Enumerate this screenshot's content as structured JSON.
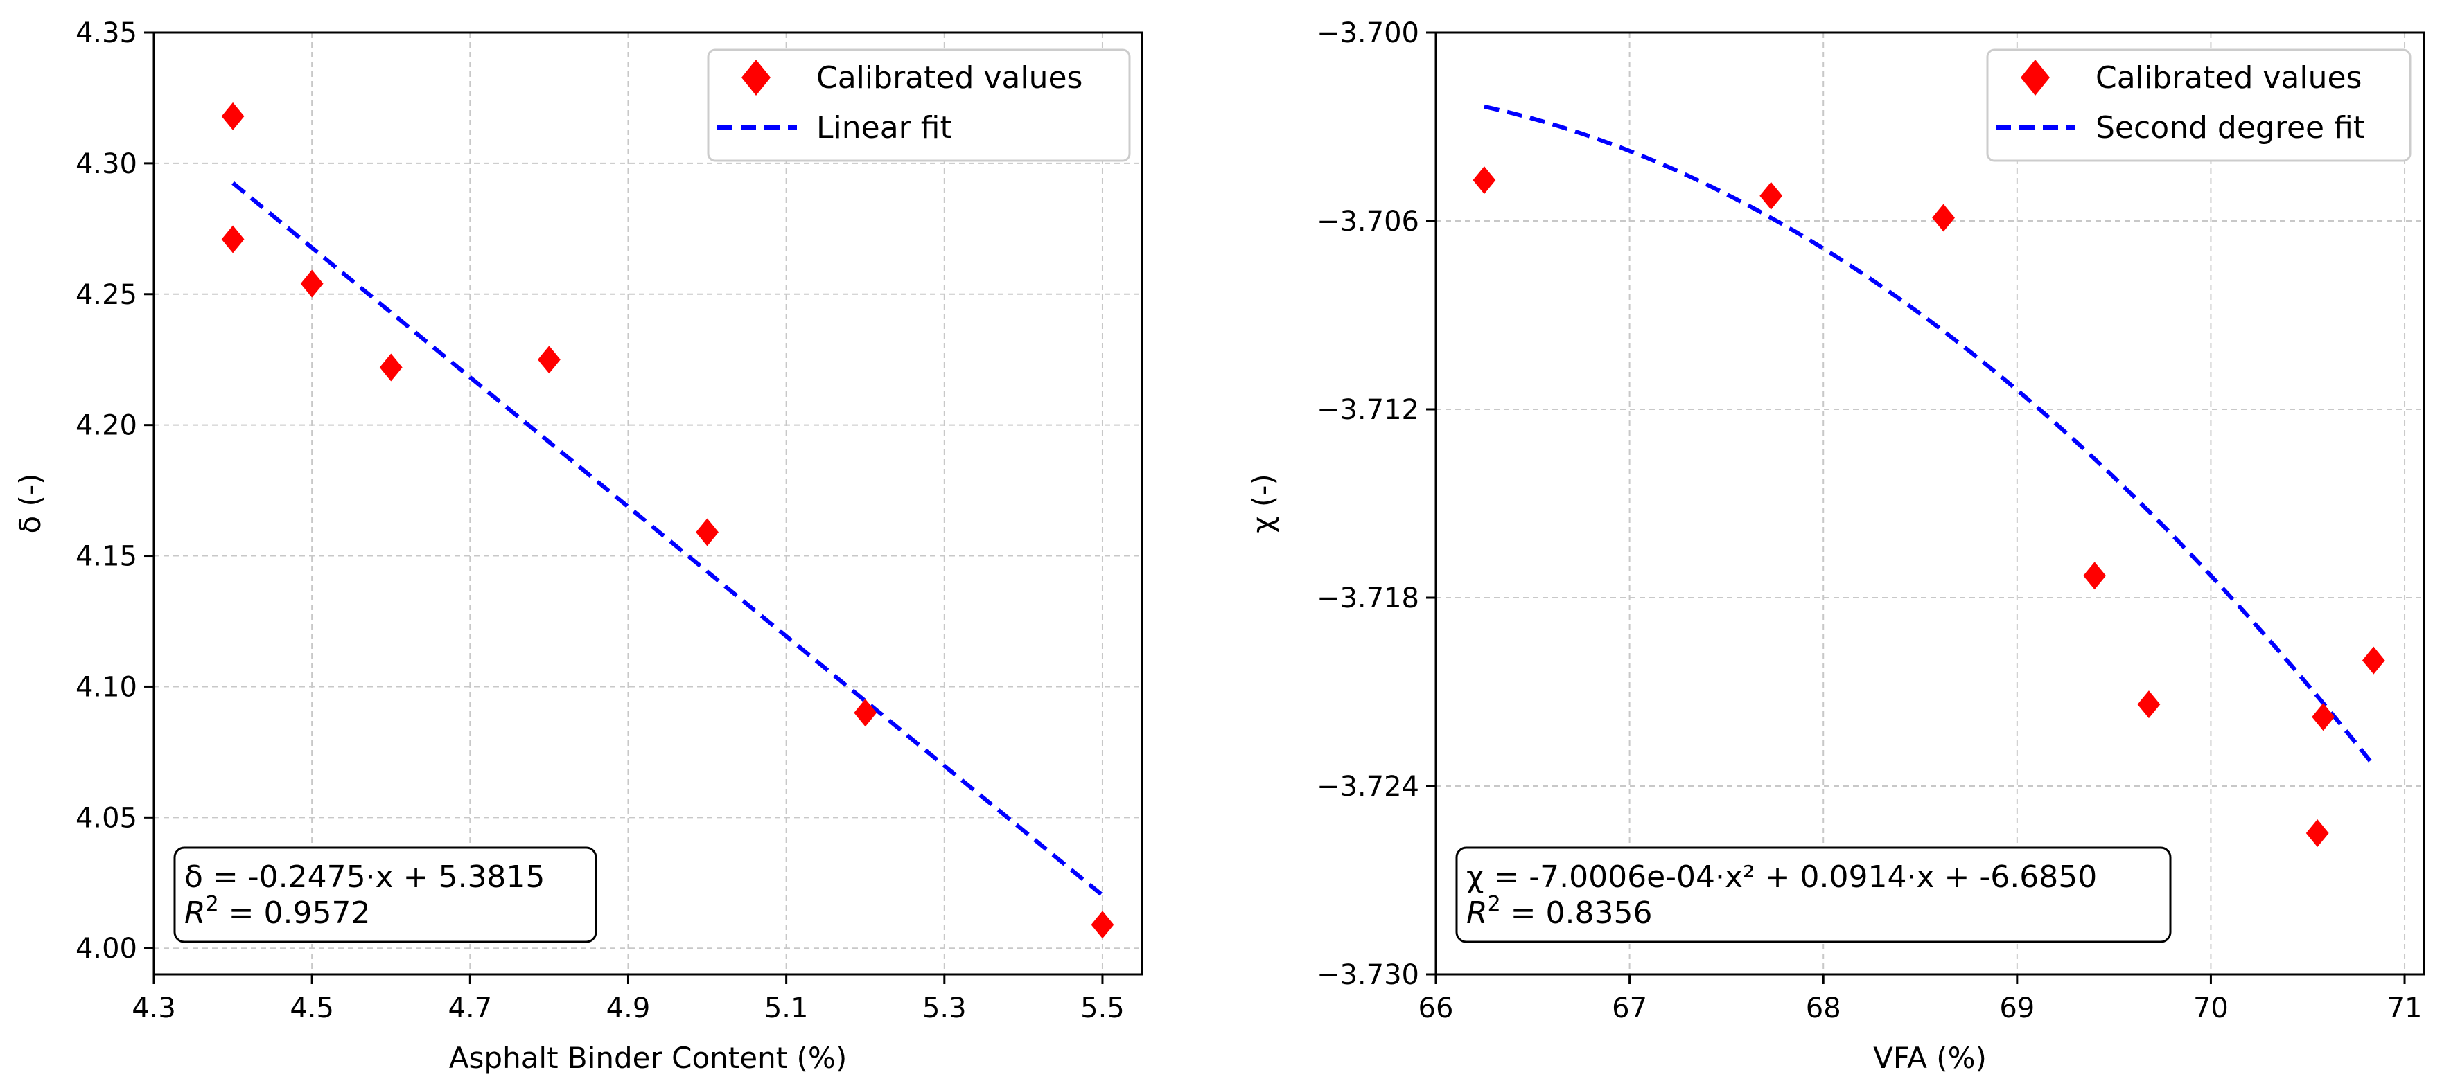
{
  "chart_data": [
    {
      "type": "scatter",
      "xlabel": "Asphalt Binder Content (%)",
      "ylabel": "δ (-)",
      "xlim": [
        4.3,
        5.55
      ],
      "ylim": [
        3.99,
        4.35
      ],
      "xticks": [
        "4.3",
        "4.5",
        "4.7",
        "4.9",
        "5.1",
        "5.3",
        "5.5"
      ],
      "yticks": [
        "4.00",
        "4.05",
        "4.10",
        "4.15",
        "4.20",
        "4.25",
        "4.30",
        "4.35"
      ],
      "grid": true,
      "legend_position": "top-right",
      "series": [
        {
          "name": "Calibrated values",
          "kind": "scatter",
          "marker": "diamond",
          "color": "#ff0000",
          "x": [
            4.4,
            4.4,
            4.5,
            4.6,
            4.8,
            5.0,
            5.2,
            5.5
          ],
          "y": [
            4.318,
            4.271,
            4.254,
            4.222,
            4.225,
            4.159,
            4.09,
            4.009
          ]
        },
        {
          "name": "Linear fit",
          "kind": "line",
          "style": "dashed",
          "color": "#0000ff",
          "coef": [
            -0.2475,
            5.3815
          ],
          "x_range": [
            4.4,
            5.5
          ]
        }
      ],
      "annotation": {
        "line1": "δ = -0.2475·x + 5.3815",
        "r2_label": "R",
        "r2_sup": "2",
        "r2_value": " = 0.9572"
      }
    },
    {
      "type": "scatter",
      "xlabel": "VFA (%)",
      "ylabel": "χ (-)",
      "xlim": [
        66,
        71.1
      ],
      "ylim": [
        -3.73,
        -3.7
      ],
      "xticks": [
        "66",
        "67",
        "68",
        "69",
        "70",
        "71"
      ],
      "yticks": [
        "−3.730",
        "−3.724",
        "−3.718",
        "−3.712",
        "−3.706",
        "−3.700"
      ],
      "grid": true,
      "legend_position": "top-right",
      "series": [
        {
          "name": "Calibrated values",
          "kind": "scatter",
          "marker": "diamond",
          "color": "#ff0000",
          "x": [
            66.25,
            67.73,
            68.62,
            69.4,
            69.68,
            70.55,
            70.58,
            70.84
          ],
          "y": [
            -3.7047,
            -3.7052,
            -3.7059,
            -3.7173,
            -3.7214,
            -3.7255,
            -3.7218,
            -3.72
          ]
        },
        {
          "name": "Second degree fit",
          "kind": "line",
          "style": "dashed",
          "color": "#0000ff",
          "coef": [
            -0.00070006,
            0.0914,
            -6.685
          ],
          "x_range": [
            66.25,
            70.84
          ]
        }
      ],
      "annotation": {
        "line1": "χ = -7.0006e-04·x² + 0.0914·x + -6.6850",
        "r2_label": "R",
        "r2_sup": "2",
        "r2_value": " = 0.8356"
      }
    }
  ]
}
